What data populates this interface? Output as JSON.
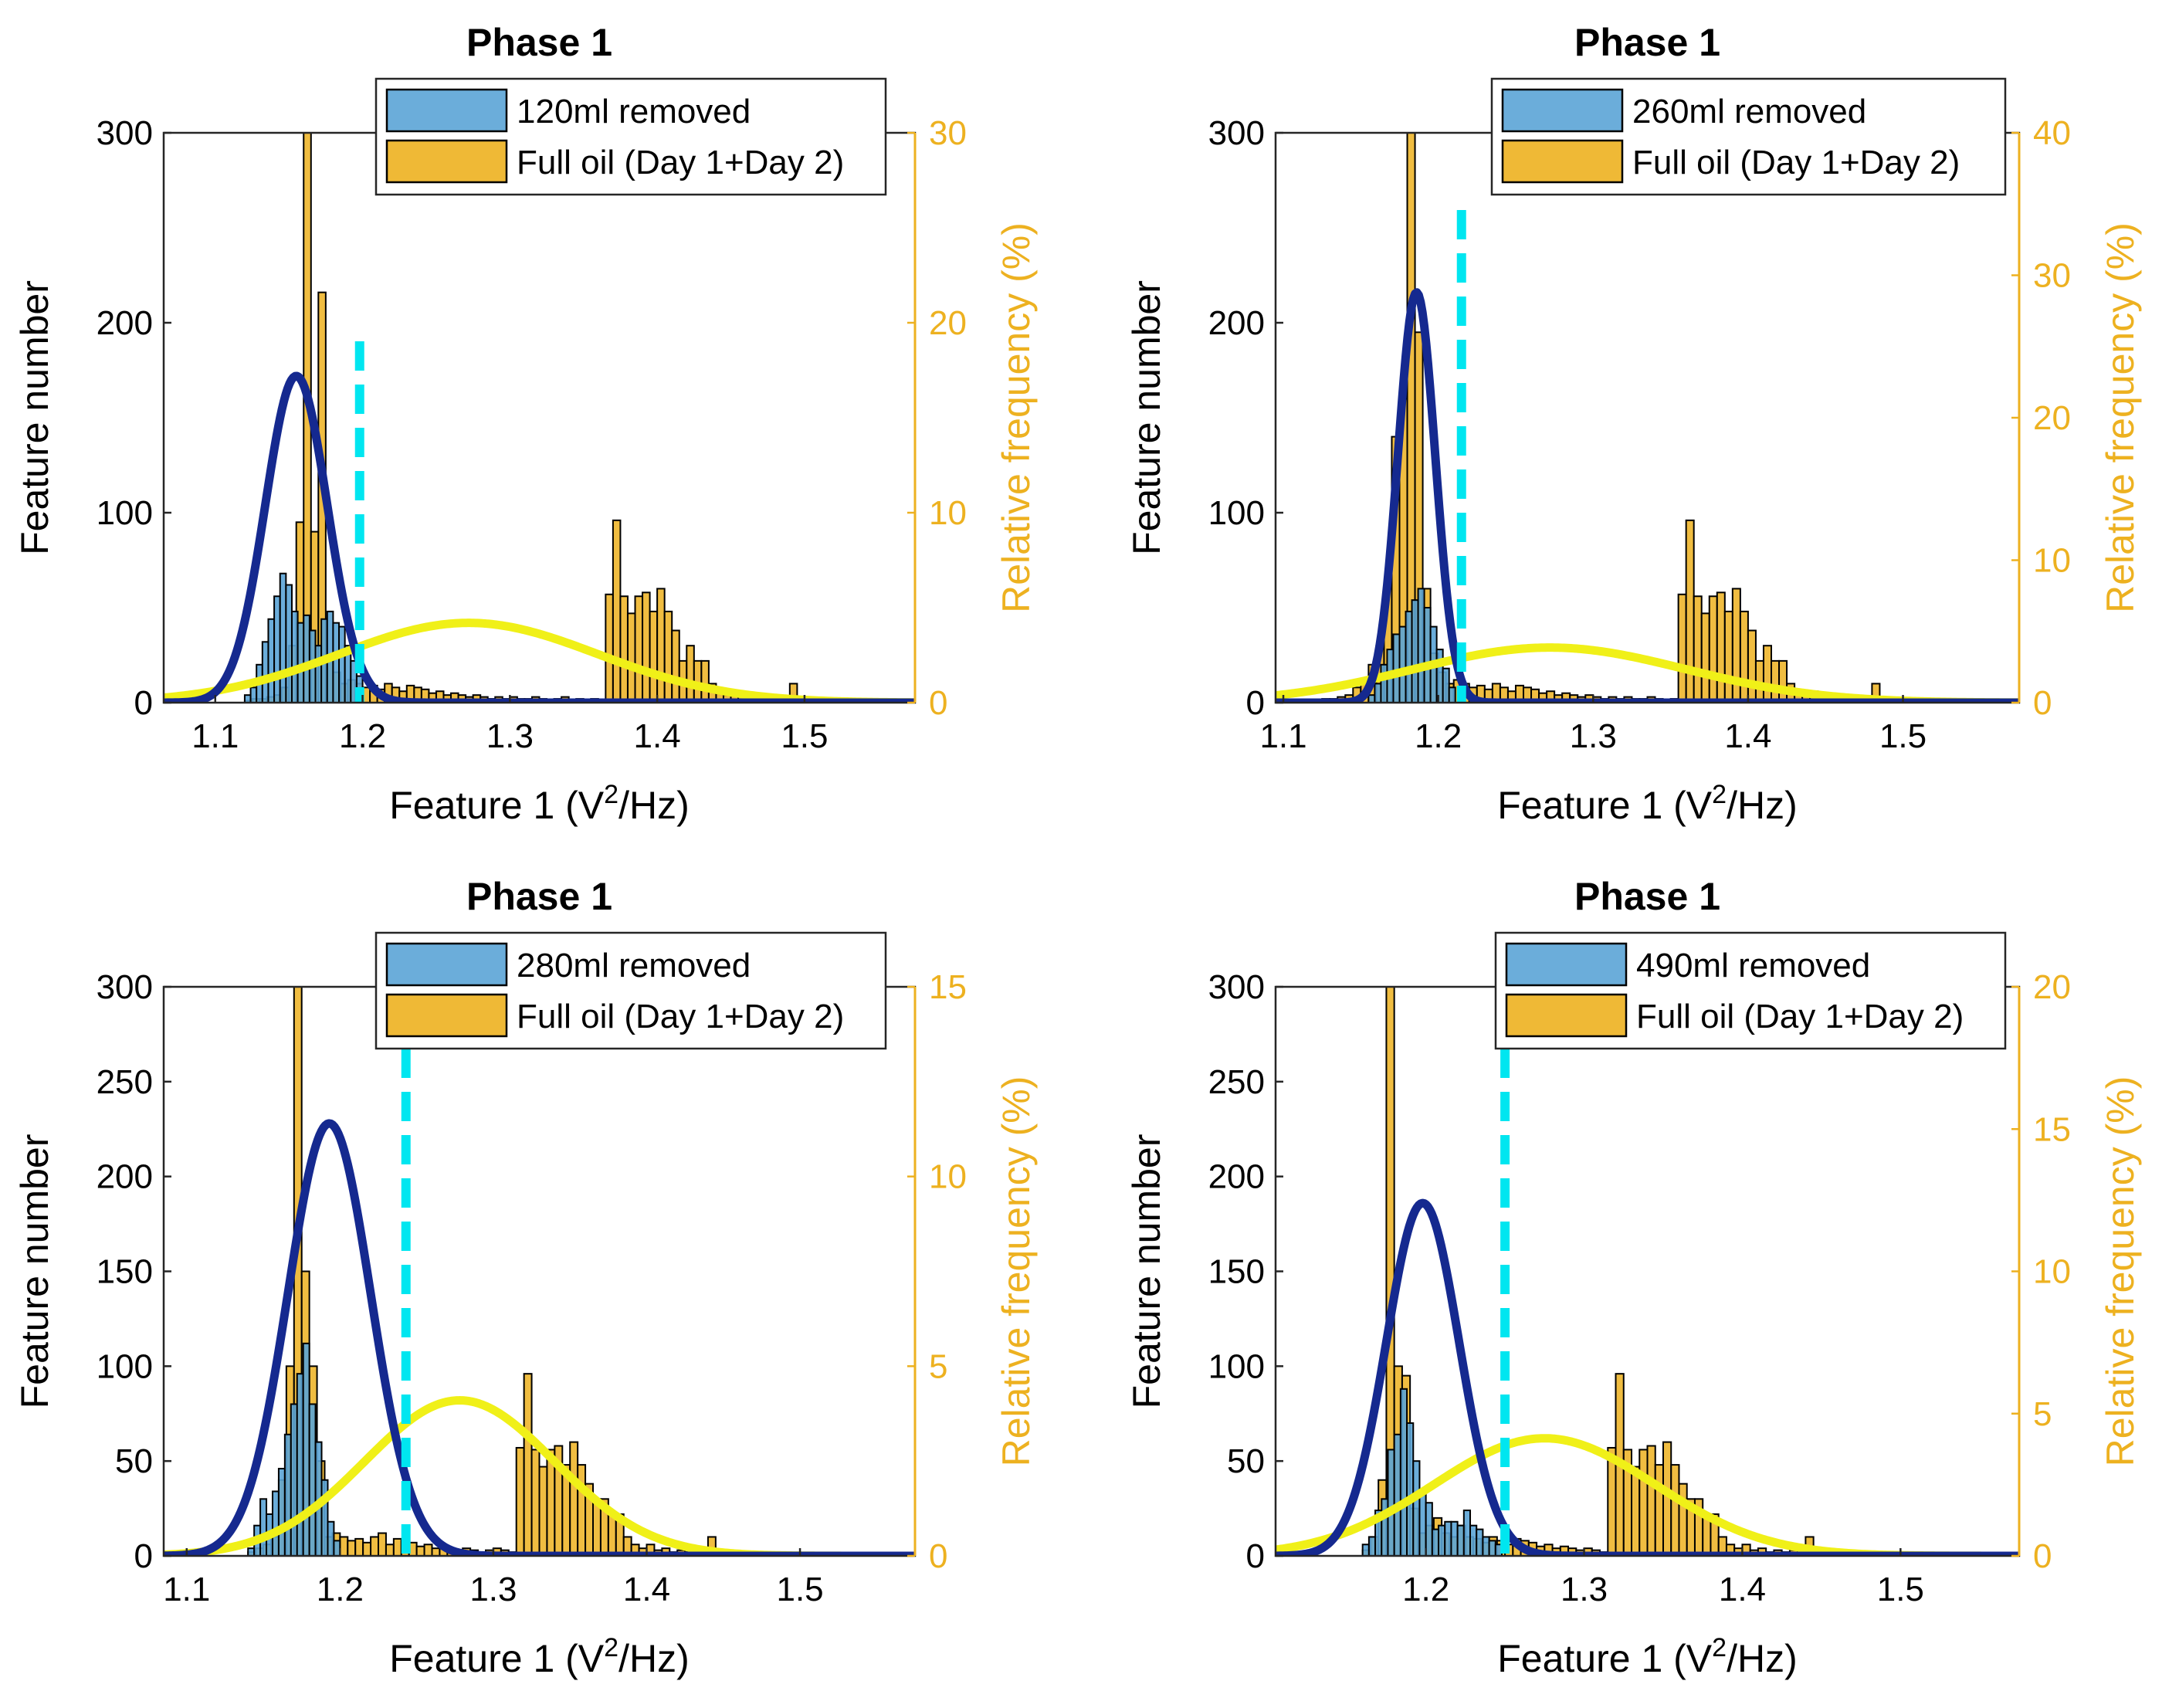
{
  "figure": {
    "colors": {
      "removed": "#5BA4D6",
      "full_oil": "#EDB120",
      "fit_removed": "#15298F",
      "fit_full": "#F0F018",
      "threshold": "#00E6F0",
      "right_axis": "#EDB120"
    }
  },
  "chart_data": [
    {
      "type": "bar",
      "title": "Phase 1",
      "xlabel": "Feature 1 (V²/Hz)",
      "xlabel_parts": {
        "main": "Feature 1 (V",
        "sup": "2",
        "tail": "/Hz)"
      },
      "ylabel": "Feature number",
      "ylabel_right": "Relative frequency (%)",
      "xlim": [
        1.065,
        1.575
      ],
      "ylim": [
        0,
        300
      ],
      "ylim_right": [
        0,
        30
      ],
      "xticks": [
        "1.1",
        "1.2",
        "1.3",
        "1.4",
        "1.5"
      ],
      "yticks": [
        "0",
        "100",
        "200",
        "300"
      ],
      "yticks_right": [
        "0",
        "10",
        "20",
        "30"
      ],
      "legend": [
        "120ml removed",
        "Full oil (Day 1+Day 2)"
      ],
      "threshold_x": 1.198,
      "removed_fit": {
        "mu": 1.155,
        "sigma": 0.021,
        "peak": 172
      },
      "full_fit": {
        "mu": 1.272,
        "sigma": 0.088,
        "peak": 42
      },
      "series": [
        {
          "name": "120ml removed",
          "start": 1.12,
          "width": 0.004,
          "values": [
            4,
            8,
            20,
            32,
            44,
            56,
            68,
            62,
            48,
            42,
            46,
            38,
            30,
            44,
            48,
            42,
            40,
            30,
            22,
            14
          ]
        },
        {
          "name": "Full oil (Day 1+Day 2)",
          "start": 1.12,
          "width": 0.005,
          "values": [
            1,
            2,
            2,
            3,
            4,
            8,
            30,
            95,
            300,
            90,
            216,
            22,
            16,
            10,
            12,
            10,
            8,
            9,
            7,
            10,
            8,
            6,
            9,
            8,
            7,
            5,
            6,
            4,
            5,
            4,
            3,
            4,
            3,
            2,
            3,
            2,
            3,
            2,
            2,
            3,
            2,
            1,
            2,
            3,
            1,
            2,
            1,
            2,
            1,
            57,
            96,
            56,
            47,
            56,
            58,
            48,
            60,
            48,
            38,
            22,
            30,
            22,
            22,
            10,
            6,
            4,
            6,
            3,
            4,
            2,
            3,
            2,
            3,
            2,
            10,
            3,
            2
          ]
        }
      ]
    },
    {
      "type": "bar",
      "title": "Phase 1",
      "xlabel": "Feature 1 (V²/Hz)",
      "xlabel_parts": {
        "main": "Feature 1 (V",
        "sup": "2",
        "tail": "/Hz)"
      },
      "ylabel": "Feature number",
      "ylabel_right": "Relative frequency (%)",
      "xlim": [
        1.095,
        1.575
      ],
      "ylim": [
        0,
        300
      ],
      "ylim_right": [
        0,
        40
      ],
      "xticks": [
        "1.1",
        "1.2",
        "1.3",
        "1.4",
        "1.5"
      ],
      "yticks": [
        "0",
        "100",
        "200",
        "300"
      ],
      "yticks_right": [
        "0",
        "10",
        "20",
        "30",
        "40"
      ],
      "legend": [
        "260ml removed",
        "Full oil (Day 1+Day 2)"
      ],
      "threshold_x": 1.215,
      "removed_fit": {
        "mu": 1.186,
        "sigma": 0.012,
        "peak": 216
      },
      "full_fit": {
        "mu": 1.272,
        "sigma": 0.088,
        "peak": 29
      },
      "series": [
        {
          "name": "260ml removed",
          "start": 1.155,
          "width": 0.004,
          "values": [
            4,
            10,
            20,
            28,
            36,
            40,
            48,
            54,
            60,
            50,
            40,
            28,
            18,
            8
          ]
        },
        {
          "name": "Full oil (Day 1+Day 2)",
          "start": 1.12,
          "width": 0.005,
          "values": [
            1,
            2,
            2,
            3,
            4,
            8,
            10,
            20,
            30,
            60,
            140,
            160,
            300,
            195,
            60,
            26,
            16,
            10,
            12,
            10,
            8,
            9,
            7,
            10,
            8,
            6,
            9,
            8,
            7,
            5,
            6,
            4,
            5,
            4,
            3,
            4,
            3,
            2,
            3,
            2,
            3,
            2,
            2,
            3,
            2,
            1,
            2,
            57,
            96,
            56,
            47,
            56,
            58,
            48,
            60,
            48,
            38,
            22,
            30,
            22,
            22,
            10,
            6,
            4,
            6,
            3,
            4,
            2,
            3,
            2,
            3,
            2,
            10,
            3,
            2
          ]
        }
      ]
    },
    {
      "type": "bar",
      "title": "Phase 1",
      "xlabel": "Feature 1 (V²/Hz)",
      "xlabel_parts": {
        "main": "Feature 1 (V",
        "sup": "2",
        "tail": "/Hz)"
      },
      "ylabel": "Feature number",
      "ylabel_right": "Relative frequency (%)",
      "xlim": [
        1.085,
        1.575
      ],
      "ylim": [
        0,
        300
      ],
      "ylim_right": [
        0,
        15
      ],
      "xticks": [
        "1.1",
        "1.2",
        "1.3",
        "1.4",
        "1.5"
      ],
      "yticks": [
        "0",
        "50",
        "100",
        "150",
        "200",
        "250",
        "300"
      ],
      "yticks_right": [
        "0",
        "5",
        "10",
        "15"
      ],
      "legend": [
        "280ml removed",
        "Full oil (Day 1+Day 2)"
      ],
      "threshold_x": 1.243,
      "removed_fit": {
        "mu": 1.193,
        "sigma": 0.027,
        "peak": 228
      },
      "full_fit": {
        "mu": 1.278,
        "sigma": 0.062,
        "peak": 82
      },
      "series": [
        {
          "name": "280ml removed",
          "start": 1.14,
          "width": 0.004,
          "values": [
            4,
            16,
            30,
            22,
            34,
            46,
            64,
            80,
            96,
            112,
            80,
            60,
            40,
            18,
            8
          ]
        },
        {
          "name": "Full oil (Day 1+Day 2)",
          "start": 1.14,
          "width": 0.005,
          "values": [
            2,
            4,
            6,
            10,
            40,
            100,
            300,
            150,
            100,
            50,
            10,
            12,
            10,
            8,
            9,
            7,
            10,
            12,
            6,
            9,
            8,
            7,
            5,
            6,
            4,
            5,
            4,
            3,
            4,
            3,
            2,
            3,
            4,
            3,
            2,
            57,
            96,
            56,
            47,
            56,
            58,
            48,
            60,
            48,
            38,
            30,
            30,
            22,
            22,
            10,
            6,
            4,
            6,
            3,
            4,
            2,
            3,
            2,
            3,
            2,
            10,
            3,
            2
          ]
        }
      ]
    },
    {
      "type": "bar",
      "title": "Phase 1",
      "xlabel": "Feature 1 (V²/Hz)",
      "xlabel_parts": {
        "main": "Feature 1 (V",
        "sup": "2",
        "tail": "/Hz)"
      },
      "ylabel": "Feature number",
      "ylabel_right": "Relative frequency (%)",
      "xlim": [
        1.105,
        1.575
      ],
      "ylim": [
        0,
        300
      ],
      "ylim_right": [
        0,
        20
      ],
      "xticks": [
        "1.2",
        "1.3",
        "1.4",
        "1.5"
      ],
      "yticks": [
        "0",
        "50",
        "100",
        "150",
        "200",
        "250",
        "300"
      ],
      "yticks_right": [
        "0",
        "5",
        "10",
        "15",
        "20"
      ],
      "legend": [
        "490ml removed",
        "Full oil (Day 1+Day 2)"
      ],
      "threshold_x": 1.25,
      "removed_fit": {
        "mu": 1.198,
        "sigma": 0.023,
        "peak": 186
      },
      "full_fit": {
        "mu": 1.275,
        "sigma": 0.07,
        "peak": 62
      },
      "series": [
        {
          "name": "490ml removed",
          "start": 1.16,
          "width": 0.004,
          "values": [
            6,
            10,
            24,
            30,
            56,
            64,
            88,
            70,
            50,
            34,
            28,
            14,
            16,
            18,
            18,
            16,
            24,
            16,
            14,
            10,
            8,
            6
          ]
        },
        {
          "name": "Full oil (Day 1+Day 2)",
          "start": 1.16,
          "width": 0.005,
          "values": [
            3,
            10,
            40,
            300,
            100,
            95,
            25,
            12,
            16,
            20,
            12,
            10,
            16,
            10,
            9,
            7,
            10,
            8,
            6,
            9,
            8,
            7,
            5,
            6,
            4,
            5,
            4,
            3,
            4,
            3,
            2,
            57,
            96,
            56,
            47,
            56,
            58,
            48,
            60,
            48,
            38,
            30,
            30,
            22,
            22,
            10,
            6,
            4,
            6,
            3,
            4,
            2,
            3,
            2,
            3,
            2,
            10,
            3,
            2
          ]
        }
      ]
    }
  ]
}
